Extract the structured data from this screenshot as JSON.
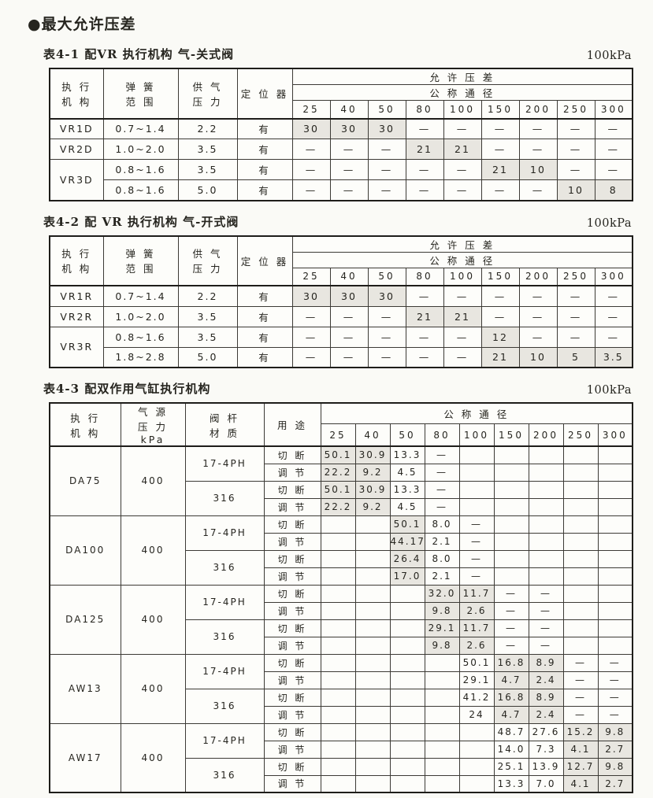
{
  "title": "●最大允许压差",
  "tables": {
    "t1": {
      "caption": "表4-1 配VR 执行机构  气-关式阀",
      "unit": "100kPa",
      "head": {
        "actuator": "执 行\n机 构",
        "spring": "弹 簧\n范 围",
        "supply": "供 气\n压 力",
        "positioner": "定 位 器",
        "allow": "允   许   压   差",
        "nominal": "公   称   通   径",
        "sizes": [
          "25",
          "40",
          "50",
          "80",
          "100",
          "150",
          "200",
          "250",
          "300"
        ]
      },
      "rows": [
        {
          "actuator": "VR1D",
          "span": 1,
          "spring": "0.7~1.4",
          "supply": "2.2",
          "positioner": "有",
          "values": [
            "30",
            "30",
            "30",
            "—",
            "—",
            "—",
            "—",
            "—",
            "—"
          ],
          "shaded": [
            0,
            1,
            2
          ]
        },
        {
          "actuator": "VR2D",
          "span": 1,
          "spring": "1.0~2.0",
          "supply": "3.5",
          "positioner": "有",
          "values": [
            "—",
            "—",
            "—",
            "21",
            "21",
            "—",
            "—",
            "—",
            "—"
          ],
          "shaded": [
            3,
            4
          ]
        },
        {
          "actuator": "VR3D",
          "span": 2,
          "spring": "0.8~1.6",
          "supply": "3.5",
          "positioner": "有",
          "values": [
            "—",
            "—",
            "—",
            "—",
            "—",
            "21",
            "10",
            "—",
            "—"
          ],
          "shaded": [
            5,
            6
          ]
        },
        {
          "actuator": null,
          "span": 0,
          "spring": "0.8~1.6",
          "supply": "5.0",
          "positioner": "有",
          "values": [
            "—",
            "—",
            "—",
            "—",
            "—",
            "—",
            "—",
            "10",
            "8"
          ],
          "shaded": [
            7,
            8
          ]
        }
      ]
    },
    "t2": {
      "caption": "表4-2 配 VR 执行机构 气-开式阀",
      "unit": "100kPa",
      "head": {
        "actuator": "执 行\n机 构",
        "spring": "弹 簧\n范 围",
        "supply": "供 气\n压 力",
        "positioner": "定 位 器",
        "allow": "允   许   压   差",
        "nominal": "公   称   通   径",
        "sizes": [
          "25",
          "40",
          "50",
          "80",
          "100",
          "150",
          "200",
          "250",
          "300"
        ]
      },
      "rows": [
        {
          "actuator": "VR1R",
          "span": 1,
          "spring": "0.7~1.4",
          "supply": "2.2",
          "positioner": "有",
          "values": [
            "30",
            "30",
            "30",
            "—",
            "—",
            "—",
            "—",
            "—",
            "—"
          ],
          "shaded": [
            0,
            1,
            2
          ]
        },
        {
          "actuator": "VR2R",
          "span": 1,
          "spring": "1.0~2.0",
          "supply": "3.5",
          "positioner": "有",
          "values": [
            "—",
            "—",
            "—",
            "21",
            "21",
            "—",
            "—",
            "—",
            "—"
          ],
          "shaded": [
            3,
            4
          ]
        },
        {
          "actuator": "VR3R",
          "span": 2,
          "spring": "0.8~1.6",
          "supply": "3.5",
          "positioner": "有",
          "values": [
            "—",
            "—",
            "—",
            "—",
            "—",
            "12",
            "—",
            "—",
            "—"
          ],
          "shaded": [
            5
          ]
        },
        {
          "actuator": null,
          "span": 0,
          "spring": "1.8~2.8",
          "supply": "5.0",
          "positioner": "有",
          "values": [
            "—",
            "—",
            "—",
            "—",
            "—",
            "21",
            "10",
            "5",
            "3.5"
          ],
          "shaded": [
            5,
            6,
            7,
            8
          ]
        }
      ]
    },
    "t3": {
      "caption": "表4-3 配双作用气缸执行机构",
      "unit": "100kPa",
      "head": {
        "actuator": "执 行\n机 构",
        "source": "气 源\n压 力\nkPa",
        "stem": "阀 杆\n材 质",
        "use": "用 途",
        "nominal": "公  称  通  径",
        "sizes": [
          "25",
          "40",
          "50",
          "80",
          "100",
          "150",
          "200",
          "250",
          "300"
        ]
      },
      "groups": [
        {
          "actuator": "DA75",
          "pressure": "400",
          "materials": [
            {
              "name": "17-4PH",
              "rows": [
                {
                  "use": "切 断",
                  "values": [
                    "50.1",
                    "30.9",
                    "13.3",
                    "—",
                    "",
                    "",
                    "",
                    "",
                    ""
                  ],
                  "shaded": [
                    0,
                    1
                  ]
                },
                {
                  "use": "调 节",
                  "values": [
                    "22.2",
                    "9.2",
                    "4.5",
                    "—",
                    "",
                    "",
                    "",
                    "",
                    ""
                  ],
                  "shaded": [
                    0,
                    1
                  ]
                }
              ]
            },
            {
              "name": "316",
              "rows": [
                {
                  "use": "切 断",
                  "values": [
                    "50.1",
                    "30.9",
                    "13.3",
                    "—",
                    "",
                    "",
                    "",
                    "",
                    ""
                  ],
                  "shaded": [
                    0,
                    1
                  ]
                },
                {
                  "use": "调 节",
                  "values": [
                    "22.2",
                    "9.2",
                    "4.5",
                    "—",
                    "",
                    "",
                    "",
                    "",
                    ""
                  ],
                  "shaded": [
                    0,
                    1
                  ]
                }
              ]
            }
          ]
        },
        {
          "actuator": "DA100",
          "pressure": "400",
          "materials": [
            {
              "name": "17-4PH",
              "rows": [
                {
                  "use": "切 断",
                  "values": [
                    "",
                    "",
                    "50.1",
                    "8.0",
                    "—",
                    "",
                    "",
                    "",
                    ""
                  ],
                  "shaded": [
                    2
                  ]
                },
                {
                  "use": "调 节",
                  "values": [
                    "",
                    "",
                    "44.17",
                    "2.1",
                    "—",
                    "",
                    "",
                    "",
                    ""
                  ],
                  "shaded": [
                    2
                  ]
                }
              ]
            },
            {
              "name": "316",
              "rows": [
                {
                  "use": "切 断",
                  "values": [
                    "",
                    "",
                    "26.4",
                    "8.0",
                    "—",
                    "",
                    "",
                    "",
                    ""
                  ],
                  "shaded": [
                    2
                  ]
                },
                {
                  "use": "调 节",
                  "values": [
                    "",
                    "",
                    "17.0",
                    "2.1",
                    "—",
                    "",
                    "",
                    "",
                    ""
                  ],
                  "shaded": [
                    2
                  ]
                }
              ]
            }
          ]
        },
        {
          "actuator": "DA125",
          "pressure": "400",
          "materials": [
            {
              "name": "17-4PH",
              "rows": [
                {
                  "use": "切 断",
                  "values": [
                    "",
                    "",
                    "",
                    "32.0",
                    "11.7",
                    "—",
                    "—",
                    "",
                    ""
                  ],
                  "shaded": [
                    3,
                    4
                  ]
                },
                {
                  "use": "调 节",
                  "values": [
                    "",
                    "",
                    "",
                    "9.8",
                    "2.6",
                    "—",
                    "—",
                    "",
                    ""
                  ],
                  "shaded": [
                    3,
                    4
                  ]
                }
              ]
            },
            {
              "name": "316",
              "rows": [
                {
                  "use": "切 断",
                  "values": [
                    "",
                    "",
                    "",
                    "29.1",
                    "11.7",
                    "—",
                    "—",
                    "",
                    ""
                  ],
                  "shaded": [
                    3,
                    4
                  ]
                },
                {
                  "use": "调 节",
                  "values": [
                    "",
                    "",
                    "",
                    "9.8",
                    "2.6",
                    "—",
                    "—",
                    "",
                    ""
                  ],
                  "shaded": [
                    3,
                    4
                  ]
                }
              ]
            }
          ]
        },
        {
          "actuator": "AW13",
          "pressure": "400",
          "materials": [
            {
              "name": "17-4PH",
              "rows": [
                {
                  "use": "切 断",
                  "values": [
                    "",
                    "",
                    "",
                    "",
                    "50.1",
                    "16.8",
                    "8.9",
                    "—",
                    "—"
                  ],
                  "shaded": [
                    5,
                    6
                  ]
                },
                {
                  "use": "调 节",
                  "values": [
                    "",
                    "",
                    "",
                    "",
                    "29.1",
                    "4.7",
                    "2.4",
                    "—",
                    "—"
                  ],
                  "shaded": [
                    5,
                    6
                  ]
                }
              ]
            },
            {
              "name": "316",
              "rows": [
                {
                  "use": "切 断",
                  "values": [
                    "",
                    "",
                    "",
                    "",
                    "41.2",
                    "16.8",
                    "8.9",
                    "—",
                    "—"
                  ],
                  "shaded": [
                    5,
                    6
                  ]
                },
                {
                  "use": "调 节",
                  "values": [
                    "",
                    "",
                    "",
                    "",
                    "24",
                    "4.7",
                    "2.4",
                    "—",
                    "—"
                  ],
                  "shaded": [
                    5,
                    6
                  ]
                }
              ]
            }
          ]
        },
        {
          "actuator": "AW17",
          "pressure": "400",
          "materials": [
            {
              "name": "17-4PH",
              "rows": [
                {
                  "use": "切 断",
                  "values": [
                    "",
                    "",
                    "",
                    "",
                    "",
                    "48.7",
                    "27.6",
                    "15.2",
                    "9.8"
                  ],
                  "shaded": [
                    7,
                    8
                  ]
                },
                {
                  "use": "调 节",
                  "values": [
                    "",
                    "",
                    "",
                    "",
                    "",
                    "14.0",
                    "7.3",
                    "4.1",
                    "2.7"
                  ],
                  "shaded": [
                    7,
                    8
                  ]
                }
              ]
            },
            {
              "name": "316",
              "rows": [
                {
                  "use": "切 断",
                  "values": [
                    "",
                    "",
                    "",
                    "",
                    "",
                    "25.1",
                    "13.9",
                    "12.7",
                    "9.8"
                  ],
                  "shaded": [
                    7,
                    8
                  ]
                },
                {
                  "use": "调 节",
                  "values": [
                    "",
                    "",
                    "",
                    "",
                    "",
                    "13.3",
                    "7.0",
                    "4.1",
                    "2.7"
                  ],
                  "shaded": [
                    7,
                    8
                  ]
                }
              ]
            }
          ]
        }
      ]
    }
  },
  "colors": {
    "shaded_cell": "#e8e6e0",
    "border": "#3c3a35",
    "paper": "#fafaf6"
  }
}
